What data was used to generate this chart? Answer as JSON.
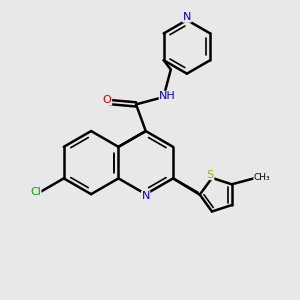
{
  "bg_color": "#e8e8e8",
  "atom_colors": {
    "N": "#0000cc",
    "O": "#cc0000",
    "S": "#aaaa00",
    "Cl": "#00aa00"
  },
  "bond_color": "#000000",
  "bond_width": 1.8,
  "inner_lw": 1.2
}
